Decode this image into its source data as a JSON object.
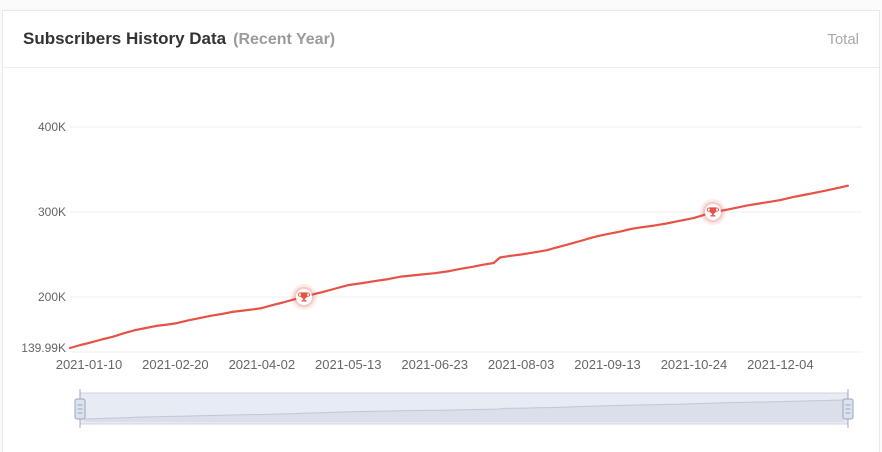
{
  "header": {
    "title": "Subscribers History Data",
    "subtitle": "(Recent Year)",
    "right_label": "Total"
  },
  "colors": {
    "line": "#e65245",
    "grid": "#efefef",
    "axis_label": "#666666",
    "title": "#333333",
    "subtitle": "#9b9b9b",
    "total": "#a9a9a9",
    "milestone_halo": "rgba(230,82,69,0.10)",
    "milestone_ring": "rgba(230,82,69,0.20)",
    "milestone_inner": "#ffffff",
    "slider_bg": "#e7ebf3",
    "slider_border": "#ccd5e3",
    "slider_mini_line": "#bfc8d6",
    "slider_mini_fill": "rgba(171,184,204,0.22)",
    "slider_handle_fill": "#dce3ee",
    "slider_handle_border": "#9aa6bc"
  },
  "chart_data": {
    "type": "line",
    "title": "Subscribers History Data (Recent Year)",
    "series_name": "Total Subscribers",
    "grid": true,
    "legend": false,
    "xlim": [
      "2021-01-01",
      "2022-01-05"
    ],
    "ylim": [
      139990,
      420000
    ],
    "x_tick_labels": [
      "2021-01-10",
      "2021-02-20",
      "2021-04-02",
      "2021-05-13",
      "2021-06-23",
      "2021-08-03",
      "2021-09-13",
      "2021-10-24",
      "2021-12-04"
    ],
    "y_ticks": [
      {
        "label": "400K",
        "value": 400000
      },
      {
        "label": "300K",
        "value": 300000
      },
      {
        "label": "200K",
        "value": 200000
      },
      {
        "label": "139.99K",
        "value": 139990
      }
    ],
    "milestones": [
      {
        "date": "2021-04-22",
        "value": 200000,
        "label": "200K milestone"
      },
      {
        "date": "2021-11-02",
        "value": 300000,
        "label": "300K milestone"
      }
    ],
    "points": [
      [
        "2021-01-01",
        139990
      ],
      [
        "2021-01-06",
        143500
      ],
      [
        "2021-01-10",
        146000
      ],
      [
        "2021-01-16",
        150000
      ],
      [
        "2021-01-21",
        153000
      ],
      [
        "2021-01-26",
        157000
      ],
      [
        "2021-02-01",
        161000
      ],
      [
        "2021-02-06",
        163500
      ],
      [
        "2021-02-11",
        166000
      ],
      [
        "2021-02-16",
        167500
      ],
      [
        "2021-02-20",
        169000
      ],
      [
        "2021-02-26",
        172500
      ],
      [
        "2021-03-03",
        175000
      ],
      [
        "2021-03-09",
        178000
      ],
      [
        "2021-03-14",
        180000
      ],
      [
        "2021-03-19",
        182500
      ],
      [
        "2021-03-24",
        184000
      ],
      [
        "2021-03-29",
        185500
      ],
      [
        "2021-04-02",
        187000
      ],
      [
        "2021-04-08",
        191000
      ],
      [
        "2021-04-12",
        193500
      ],
      [
        "2021-04-17",
        197000
      ],
      [
        "2021-04-22",
        200000
      ],
      [
        "2021-04-27",
        203500
      ],
      [
        "2021-05-01",
        206000
      ],
      [
        "2021-05-07",
        210000
      ],
      [
        "2021-05-13",
        214000
      ],
      [
        "2021-05-20",
        216500
      ],
      [
        "2021-05-26",
        219000
      ],
      [
        "2021-06-01",
        221000
      ],
      [
        "2021-06-07",
        224000
      ],
      [
        "2021-06-15",
        226000
      ],
      [
        "2021-06-23",
        228000
      ],
      [
        "2021-06-30",
        230500
      ],
      [
        "2021-07-05",
        233000
      ],
      [
        "2021-07-11",
        235500
      ],
      [
        "2021-07-16",
        238000
      ],
      [
        "2021-07-21",
        240000
      ],
      [
        "2021-07-24",
        246500
      ],
      [
        "2021-07-29",
        248500
      ],
      [
        "2021-08-03",
        250000
      ],
      [
        "2021-08-09",
        252500
      ],
      [
        "2021-08-15",
        255000
      ],
      [
        "2021-08-21",
        259000
      ],
      [
        "2021-08-27",
        263000
      ],
      [
        "2021-09-01",
        266500
      ],
      [
        "2021-09-05",
        269500
      ],
      [
        "2021-09-09",
        272000
      ],
      [
        "2021-09-13",
        274000
      ],
      [
        "2021-09-19",
        277000
      ],
      [
        "2021-09-24",
        280000
      ],
      [
        "2021-09-29",
        282000
      ],
      [
        "2021-10-05",
        284000
      ],
      [
        "2021-10-11",
        286500
      ],
      [
        "2021-10-16",
        289000
      ],
      [
        "2021-10-20",
        291000
      ],
      [
        "2021-10-24",
        293000
      ],
      [
        "2021-10-28",
        296000
      ],
      [
        "2021-11-02",
        300000
      ],
      [
        "2021-11-08",
        302500
      ],
      [
        "2021-11-13",
        305000
      ],
      [
        "2021-11-18",
        307500
      ],
      [
        "2021-11-24",
        310000
      ],
      [
        "2021-11-29",
        312000
      ],
      [
        "2021-12-04",
        314000
      ],
      [
        "2021-12-10",
        317500
      ],
      [
        "2021-12-15",
        320000
      ],
      [
        "2021-12-20",
        322500
      ],
      [
        "2021-12-25",
        325000
      ],
      [
        "2021-12-30",
        327500
      ],
      [
        "2022-01-05",
        331000
      ]
    ]
  }
}
